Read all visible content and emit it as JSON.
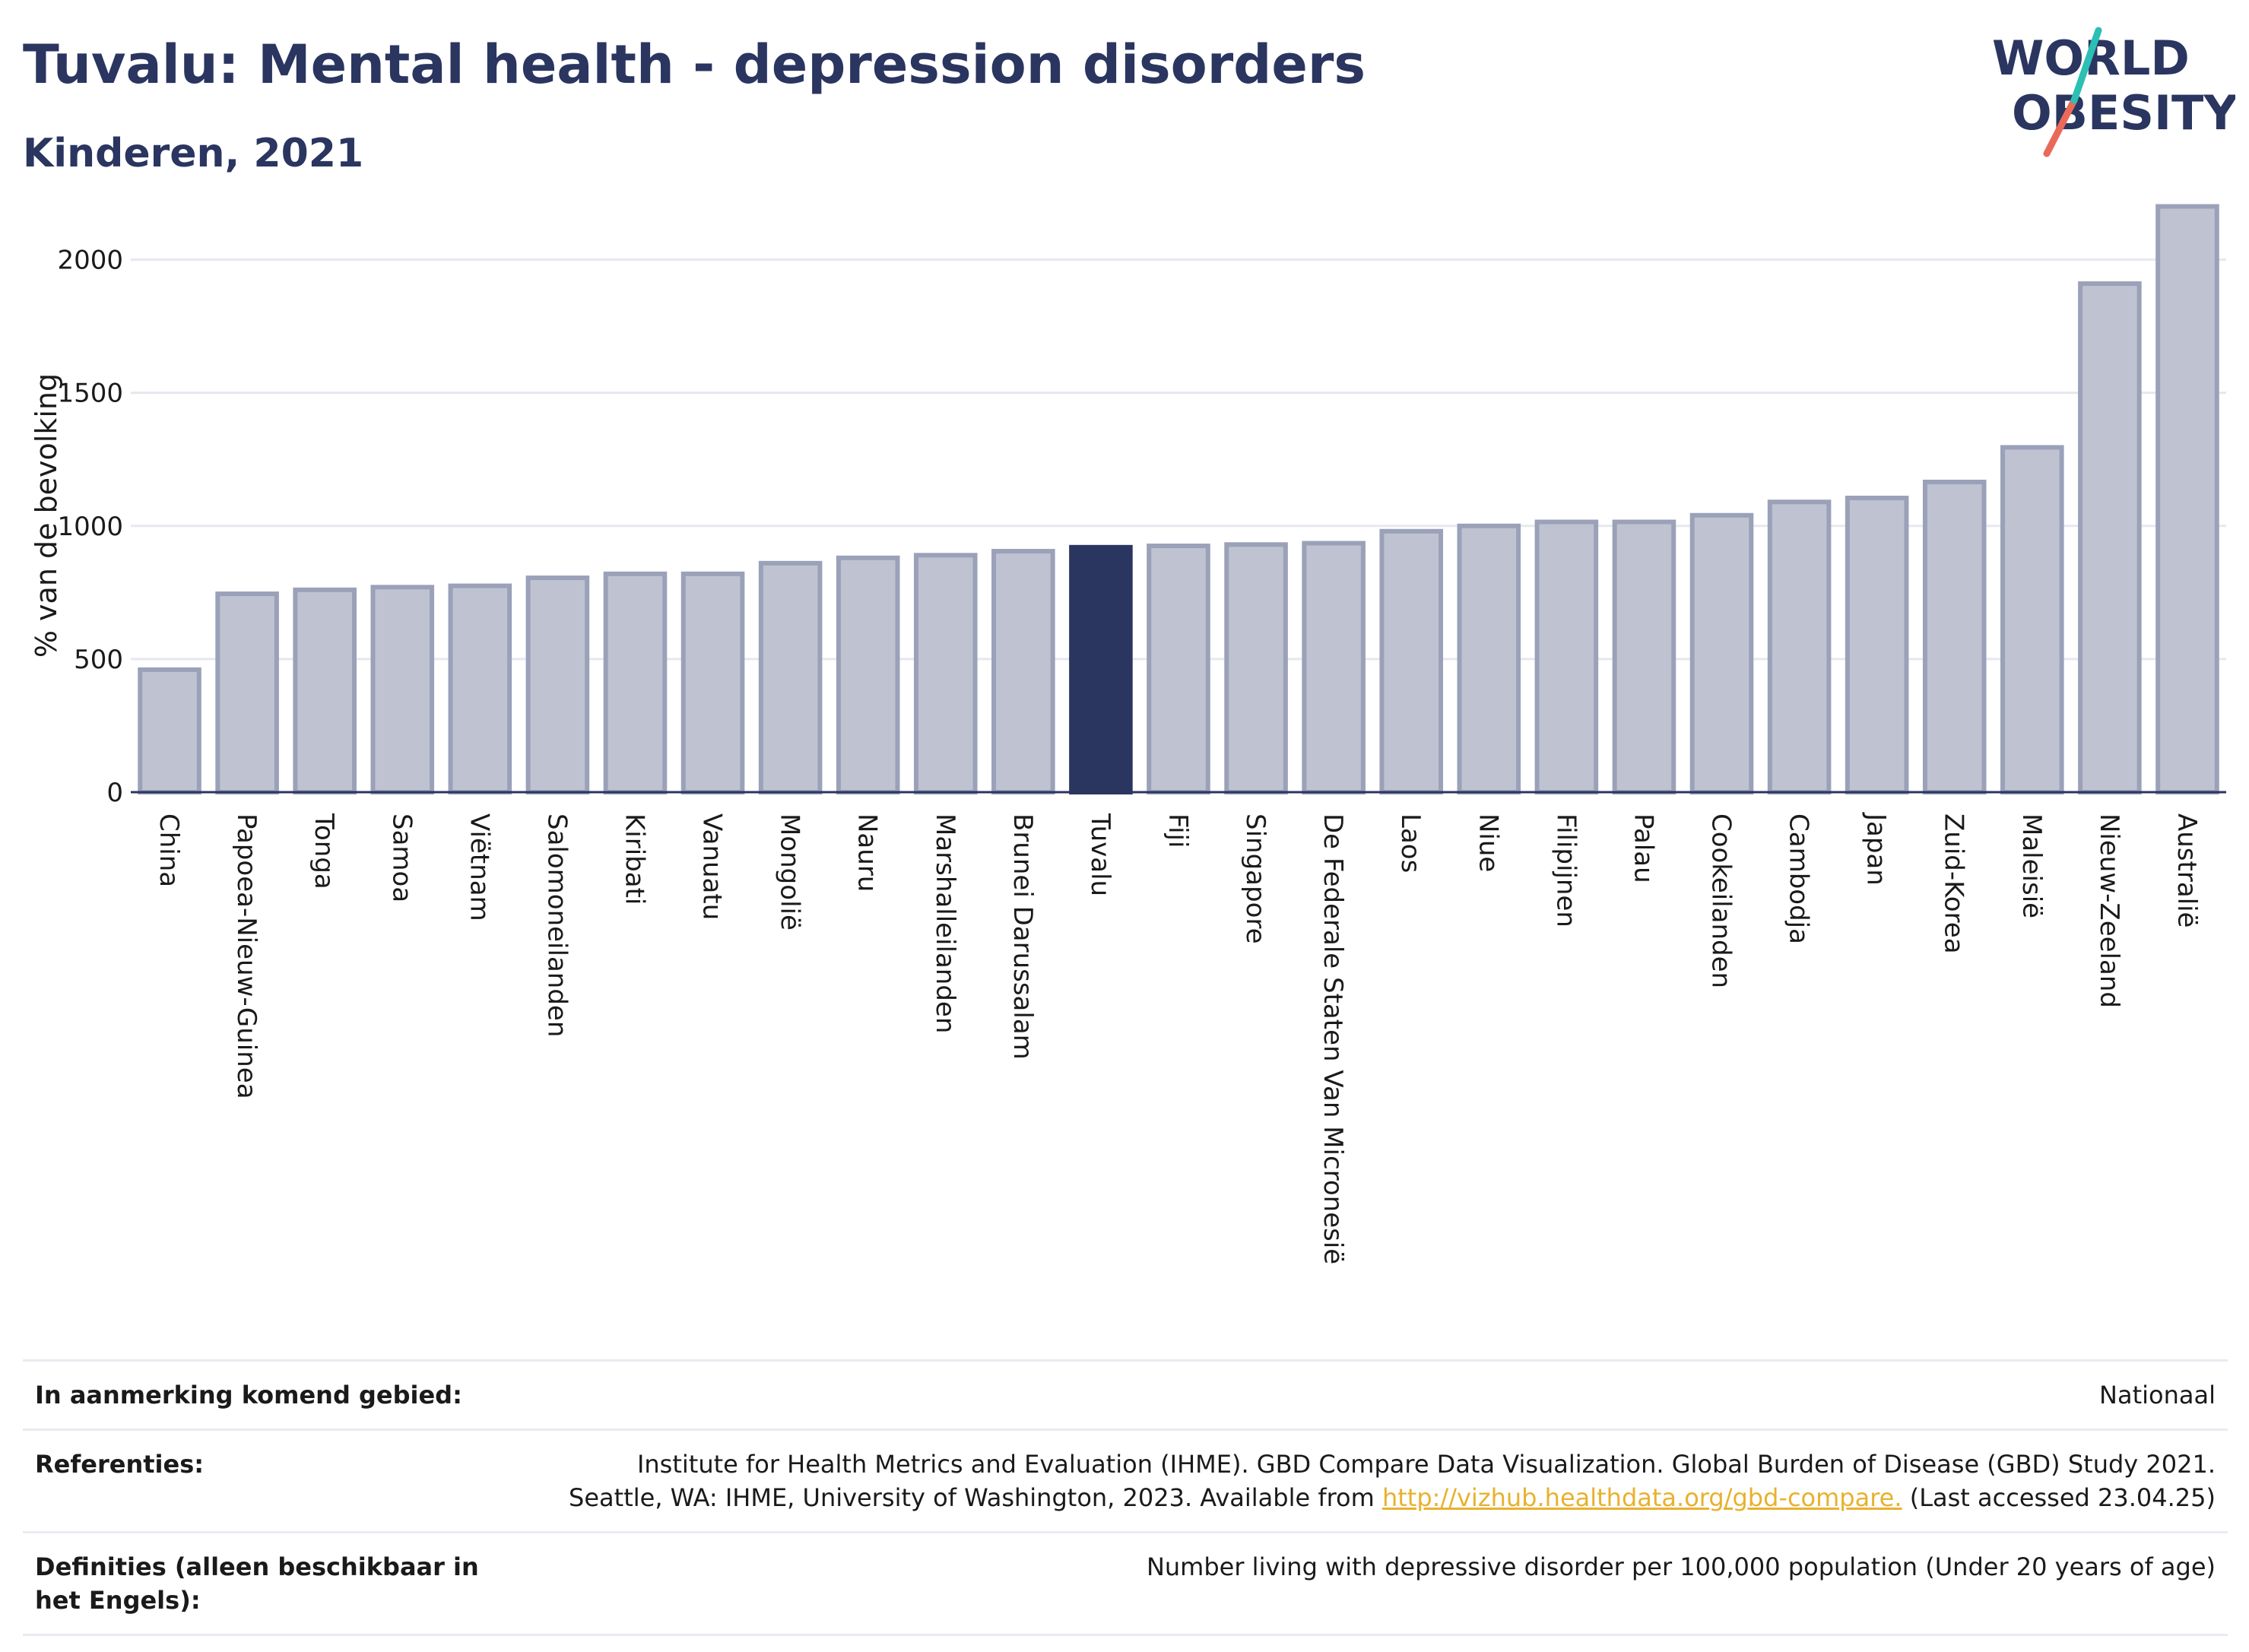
{
  "header": {
    "title": "Tuvalu: Mental health - depression disorders",
    "subtitle": "Kinderen, 2021"
  },
  "logo": {
    "line1": "WORLD",
    "line2": "OBESITY"
  },
  "colors": {
    "bar": "#bfc3d1",
    "bar_border": "#9aa1b8",
    "highlight": "#2a3560",
    "grid": "#e6e8ef",
    "axis": "#2a3560",
    "logo_teal": "#2cbfb3",
    "logo_coral": "#ea6a5a",
    "link": "#e8b12e"
  },
  "chart_data": {
    "type": "bar",
    "ylabel": "% van de bevolking",
    "ylim": [
      0,
      2250
    ],
    "yticks": [
      0,
      500,
      1000,
      1500,
      2000
    ],
    "grid": true,
    "highlight": "Tuvalu",
    "categories": [
      "China",
      "Papoea-Nieuw-Guinea",
      "Tonga",
      "Samoa",
      "Viëtnam",
      "Salomoneilanden",
      "Kiribati",
      "Vanuatu",
      "Mongolië",
      "Nauru",
      "Marshalleilanden",
      "Brunei Darussalam",
      "Tuvalu",
      "Fiji",
      "Singapore",
      "De Federale Staten Van Micronesië",
      "Laos",
      "Niue",
      "Filipijnen",
      "Palau",
      "Cookeilanden",
      "Cambodja",
      "Japan",
      "Zuid-Korea",
      "Maleisië",
      "Nieuw-Zeeland",
      "Australië"
    ],
    "values": [
      460,
      745,
      760,
      770,
      775,
      805,
      820,
      820,
      860,
      880,
      890,
      905,
      920,
      925,
      930,
      935,
      980,
      1000,
      1015,
      1015,
      1040,
      1090,
      1105,
      1165,
      1295,
      1910,
      2200
    ]
  },
  "footer": {
    "rows": [
      {
        "label": "In aanmerking komend gebied:",
        "lines": [
          "Nationaal"
        ]
      },
      {
        "label": "Referenties:",
        "lines": [
          "Institute for Health Metrics and Evaluation (IHME). GBD Compare Data Visualization. Global Burden of Disease (GBD) Study 2021."
        ],
        "line2_prefix": "Seattle, WA: IHME, University of Washington, 2023. Available from ",
        "link": "http://vizhub.healthdata.org/gbd-compare.",
        "line2_suffix": " (Last accessed 23.04.25)"
      },
      {
        "label": "Definities (alleen beschikbaar in het Engels):",
        "lines": [
          "Number living with depressive disorder per 100,000 population (Under 20 years of age)"
        ]
      }
    ]
  }
}
